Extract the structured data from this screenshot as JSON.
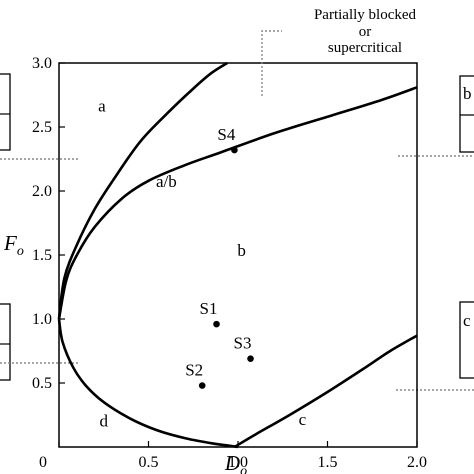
{
  "chart_data": {
    "type": "line",
    "xlabel": "D",
    "xlabel_subscript": "o",
    "ylabel": "F",
    "ylabel_subscript": "o",
    "xlim": [
      0,
      2.0
    ],
    "ylim": [
      0,
      3.0
    ],
    "xticks": [
      "0",
      "0.5",
      "1.0",
      "1.5",
      "2.0"
    ],
    "yticks": [
      "0.5",
      "1.0",
      "1.5",
      "2.0",
      "2.5",
      "3.0"
    ],
    "grid": false,
    "boundaries": [
      {
        "x": [
          0.0,
          0.03,
          0.1,
          0.2,
          0.3,
          0.45,
          0.6,
          0.75,
          0.85,
          0.94
        ],
        "y": [
          1.0,
          1.32,
          1.58,
          1.86,
          2.08,
          2.38,
          2.6,
          2.8,
          2.92,
          3.0
        ]
      },
      {
        "x": [
          0.0,
          0.04,
          0.1,
          0.2,
          0.35,
          0.5,
          0.7,
          0.9,
          1.2,
          1.5,
          1.8,
          2.0
        ],
        "y": [
          1.0,
          1.3,
          1.5,
          1.72,
          1.94,
          2.08,
          2.2,
          2.3,
          2.45,
          2.58,
          2.71,
          2.81
        ]
      },
      {
        "x": [
          0.0,
          0.02,
          0.08,
          0.15,
          0.25,
          0.4,
          0.55,
          0.7,
          0.85,
          0.95,
          1.0
        ],
        "y": [
          1.0,
          0.82,
          0.62,
          0.48,
          0.35,
          0.22,
          0.13,
          0.07,
          0.03,
          0.01,
          0.0
        ]
      },
      {
        "x": [
          0.98,
          1.1,
          1.3,
          1.5,
          1.7,
          1.85,
          2.0
        ],
        "y": [
          0.0,
          0.1,
          0.26,
          0.43,
          0.61,
          0.75,
          0.87
        ]
      }
    ],
    "points": [
      {
        "label": "S1",
        "x": 0.88,
        "y": 0.96
      },
      {
        "label": "S2",
        "x": 0.8,
        "y": 0.48
      },
      {
        "label": "S3",
        "x": 1.07,
        "y": 0.69
      },
      {
        "label": "S4",
        "x": 0.98,
        "y": 2.32
      }
    ],
    "region_labels": [
      {
        "text": "a",
        "x": 0.24,
        "y": 2.66
      },
      {
        "text": "a/b",
        "x": 0.6,
        "y": 2.07
      },
      {
        "text": "b",
        "x": 1.02,
        "y": 1.53
      },
      {
        "text": "c",
        "x": 1.36,
        "y": 0.21
      },
      {
        "text": "d",
        "x": 0.25,
        "y": 0.2
      }
    ],
    "annotation": {
      "lines": [
        "Partially blocked",
        "or",
        "supercritical"
      ]
    },
    "side_inset_labels": {
      "right_top": "b",
      "right_bottom": "c"
    }
  }
}
